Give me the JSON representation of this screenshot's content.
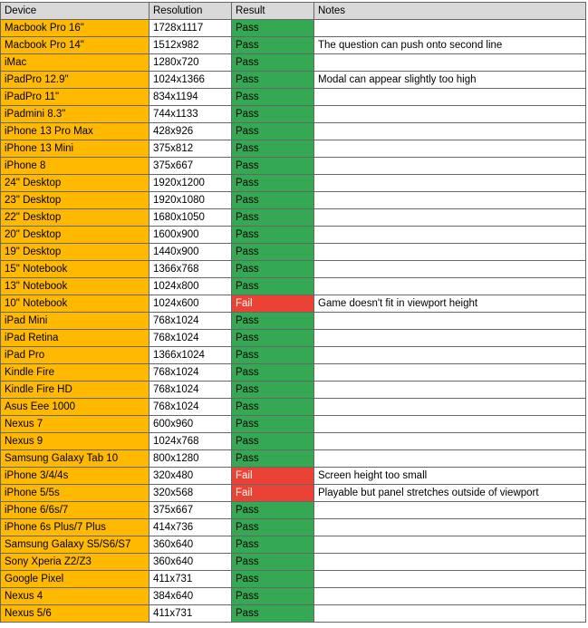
{
  "headers": [
    "Device",
    "Resolution",
    "Result",
    "Notes"
  ],
  "colors": {
    "device_cell": "#ffb900",
    "pass": "#34a853",
    "fail": "#ea4335",
    "header": "#d9d9d9"
  },
  "rows": [
    {
      "device": "Macbook Pro 16\"",
      "resolution": "1728x1117",
      "result": "Pass",
      "notes": ""
    },
    {
      "device": "Macbook Pro 14\"",
      "resolution": "1512x982",
      "result": "Pass",
      "notes": "The question can push onto second line"
    },
    {
      "device": "iMac",
      "resolution": "1280x720",
      "result": "Pass",
      "notes": ""
    },
    {
      "device": "iPadPro 12.9\"",
      "resolution": "1024x1366",
      "result": "Pass",
      "notes": "Modal can appear slightly too high"
    },
    {
      "device": "iPadPro 11\"",
      "resolution": "834x1194",
      "result": "Pass",
      "notes": ""
    },
    {
      "device": "iPadmini 8.3\"",
      "resolution": "744x1133",
      "result": "Pass",
      "notes": ""
    },
    {
      "device": "iPhone 13 Pro Max",
      "resolution": "428x926",
      "result": "Pass",
      "notes": ""
    },
    {
      "device": "iPhone 13 Mini",
      "resolution": "375x812",
      "result": "Pass",
      "notes": ""
    },
    {
      "device": "iPhone 8",
      "resolution": "375x667",
      "result": "Pass",
      "notes": ""
    },
    {
      "device": "24\" Desktop",
      "resolution": "1920x1200",
      "result": "Pass",
      "notes": ""
    },
    {
      "device": "23\" Desktop",
      "resolution": "1920x1080",
      "result": "Pass",
      "notes": ""
    },
    {
      "device": "22\" Desktop",
      "resolution": "1680x1050",
      "result": "Pass",
      "notes": ""
    },
    {
      "device": "20\" Desktop",
      "resolution": "1600x900",
      "result": "Pass",
      "notes": ""
    },
    {
      "device": "19\" Desktop",
      "resolution": "1440x900",
      "result": "Pass",
      "notes": ""
    },
    {
      "device": "15\" Notebook",
      "resolution": "1366x768",
      "result": "Pass",
      "notes": ""
    },
    {
      "device": "13\" Notebook",
      "resolution": "1024x800",
      "result": "Pass",
      "notes": ""
    },
    {
      "device": "10\" Notebook",
      "resolution": "1024x600",
      "result": "Fail",
      "notes": "Game doesn't fit in viewport height"
    },
    {
      "device": "iPad Mini",
      "resolution": "768x1024",
      "result": "Pass",
      "notes": ""
    },
    {
      "device": "iPad Retina",
      "resolution": "768x1024",
      "result": "Pass",
      "notes": ""
    },
    {
      "device": "iPad Pro",
      "resolution": "1366x1024",
      "result": "Pass",
      "notes": ""
    },
    {
      "device": "Kindle Fire",
      "resolution": "768x1024",
      "result": "Pass",
      "notes": ""
    },
    {
      "device": "Kindle Fire HD",
      "resolution": "768x1024",
      "result": "Pass",
      "notes": ""
    },
    {
      "device": "Asus Eee 1000",
      "resolution": "768x1024",
      "result": "Pass",
      "notes": ""
    },
    {
      "device": "Nexus 7",
      "resolution": "600x960",
      "result": "Pass",
      "notes": ""
    },
    {
      "device": "Nexus 9",
      "resolution": "1024x768",
      "result": "Pass",
      "notes": ""
    },
    {
      "device": "Samsung Galaxy Tab 10",
      "resolution": "800x1280",
      "result": "Pass",
      "notes": ""
    },
    {
      "device": "iPhone 3/4/4s",
      "resolution": "320x480",
      "result": "Fail",
      "notes": "Screen height too small"
    },
    {
      "device": "iPhone 5/5s",
      "resolution": "320x568",
      "result": "Fail",
      "notes": "Playable but panel stretches outside of viewport"
    },
    {
      "device": "iPhone 6/6s/7",
      "resolution": "375x667",
      "result": "Pass",
      "notes": ""
    },
    {
      "device": "iPhone 6s Plus/7 Plus",
      "resolution": "414x736",
      "result": "Pass",
      "notes": ""
    },
    {
      "device": "Samsung Galaxy S5/S6/S7",
      "resolution": "360x640",
      "result": "Pass",
      "notes": ""
    },
    {
      "device": "Sony Xperia Z2/Z3",
      "resolution": "360x640",
      "result": "Pass",
      "notes": ""
    },
    {
      "device": "Google Pixel",
      "resolution": "411x731",
      "result": "Pass",
      "notes": ""
    },
    {
      "device": "Nexus 4",
      "resolution": "384x640",
      "result": "Pass",
      "notes": ""
    },
    {
      "device": "Nexus 5/6",
      "resolution": "411x731",
      "result": "Pass",
      "notes": ""
    }
  ]
}
